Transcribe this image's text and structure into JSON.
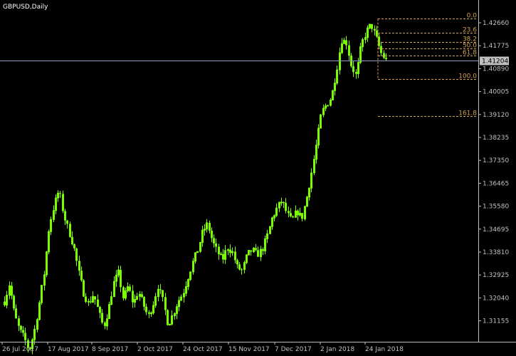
{
  "chart_data": {
    "type": "candlestick",
    "title": "GBPUSD,Daily",
    "colors": {
      "background": "#000000",
      "candle": "#7CFC00",
      "axis": "#C0C0C0",
      "fibo": "#D2A050",
      "crosshair": "#8C9BB4",
      "price_tag_bg": "#C0C0C0",
      "price_tag_text": "#000000"
    },
    "y_ticks": [
      "1.42660",
      "1.41775",
      "1.40890",
      "1.40005",
      "1.39120",
      "1.38235",
      "1.37350",
      "1.36465",
      "1.35580",
      "1.34695",
      "1.33810",
      "1.32925",
      "1.32040",
      "1.31155"
    ],
    "x_ticks": [
      "26 Jul 2017",
      "17 Aug 2017",
      "8 Sep 2017",
      "2 Oct 2017",
      "24 Oct 2017",
      "15 Nov 2017",
      "7 Dec 2017",
      "2 Jan 2018",
      "24 Jan 2018"
    ],
    "current_price": "1.41204",
    "fibonacci": [
      {
        "level": "0.0",
        "price": 1.4282
      },
      {
        "level": "23.6",
        "price": 1.4227
      },
      {
        "level": "38.2",
        "price": 1.4193
      },
      {
        "level": "50.0",
        "price": 1.4166
      },
      {
        "level": "61.8",
        "price": 1.4139
      },
      {
        "level": "100.0",
        "price": 1.405
      },
      {
        "level": "161.8",
        "price": 1.3907
      }
    ],
    "close_path": [
      1.319,
      1.326,
      1.314,
      1.308,
      1.305,
      1.3,
      1.307,
      1.318,
      1.33,
      1.348,
      1.356,
      1.362,
      1.352,
      1.346,
      1.34,
      1.33,
      1.322,
      1.318,
      1.322,
      1.315,
      1.309,
      1.316,
      1.326,
      1.33,
      1.32,
      1.325,
      1.318,
      1.323,
      1.318,
      1.313,
      1.318,
      1.325,
      1.319,
      1.31,
      1.314,
      1.319,
      1.322,
      1.328,
      1.334,
      1.339,
      1.346,
      1.349,
      1.342,
      1.338,
      1.335,
      1.34,
      1.338,
      1.332,
      1.331,
      1.337,
      1.339,
      1.337,
      1.339,
      1.344,
      1.351,
      1.355,
      1.358,
      1.353,
      1.35,
      1.354,
      1.351,
      1.359,
      1.369,
      1.38,
      1.392,
      1.395,
      1.398,
      1.408,
      1.42,
      1.419,
      1.41,
      1.406,
      1.418,
      1.423,
      1.426,
      1.421,
      1.415,
      1.412
    ]
  }
}
